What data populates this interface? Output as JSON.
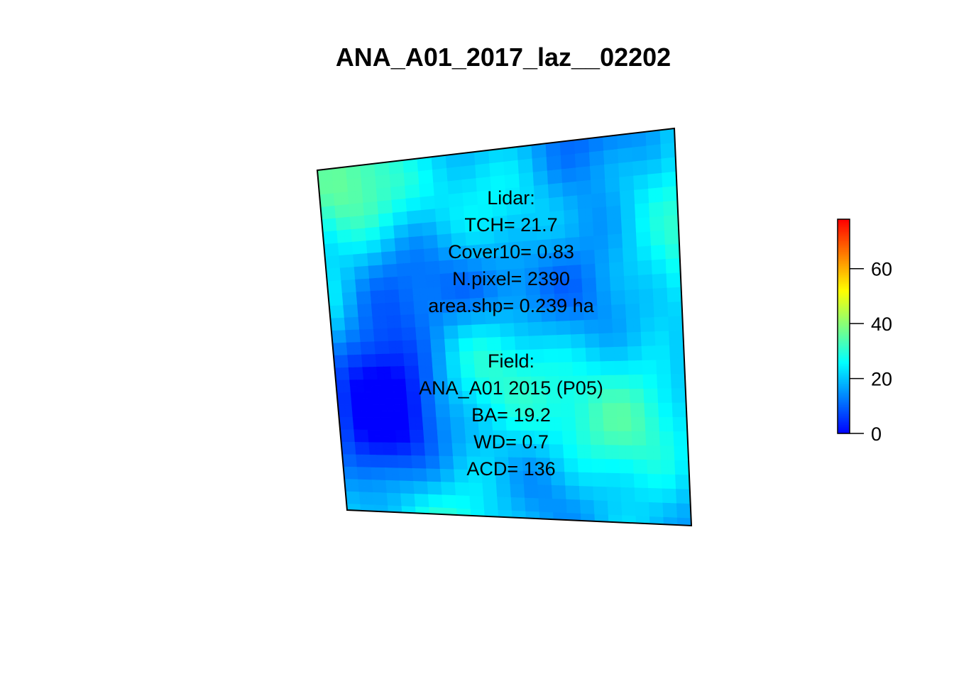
{
  "chart_data": {
    "type": "heatmap",
    "title": "ANA_A01_2017_laz__02202",
    "colorbar": {
      "range": [
        0,
        78
      ],
      "ticks": [
        0,
        20,
        40,
        60
      ],
      "tick_labels": [
        "0",
        "20",
        "40",
        "60"
      ],
      "palette": [
        "#0000ff",
        "#00ffff",
        "#ffff00",
        "#ff0000"
      ]
    },
    "lidar": {
      "heading": "Lidar:",
      "tch": "TCH= 21.7",
      "cover10": "Cover10= 0.83",
      "npixel": "N.pixel= 2390",
      "area": "area.shp= 0.239 ha"
    },
    "field": {
      "heading": "Field:",
      "plot": "ANA_A01 2015 (P05)",
      "ba": "BA= 19.2",
      "wd": "WD= 0.7",
      "acd": "ACD= 136"
    },
    "grid": {
      "cols": 50,
      "rows": 55,
      "value_range": [
        0,
        40
      ]
    }
  }
}
